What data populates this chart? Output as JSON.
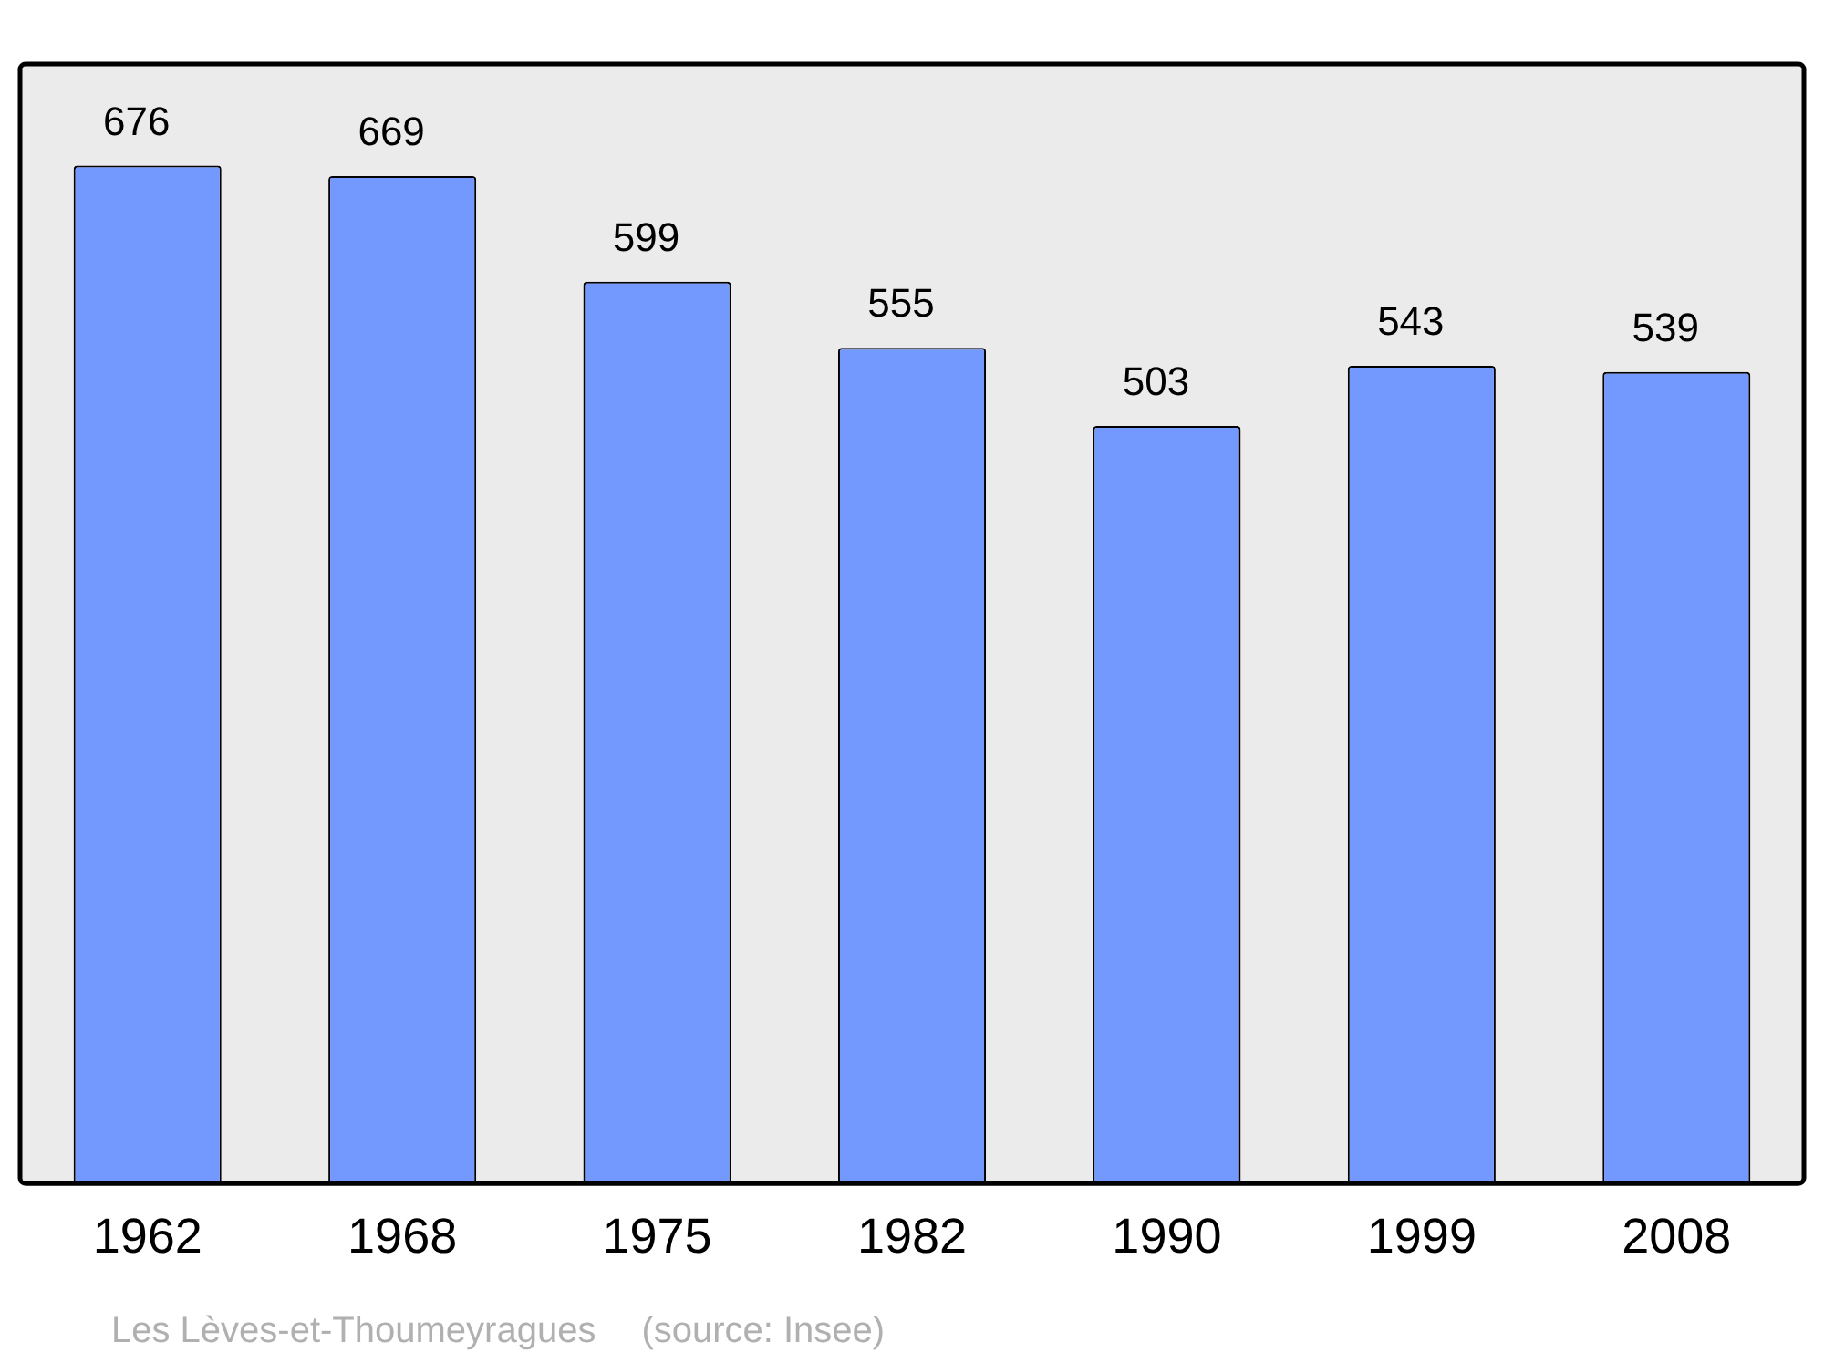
{
  "chart_data": {
    "type": "bar",
    "categories": [
      "1962",
      "1968",
      "1975",
      "1982",
      "1990",
      "1999",
      "2008"
    ],
    "values": [
      676,
      669,
      599,
      555,
      503,
      543,
      539
    ],
    "color": "#7399ff",
    "data_labels": true,
    "grid": false,
    "legend": false,
    "tick_labels": "x",
    "annotations": [
      "Les Lèves-et-Thoumeyragues",
      "(source: Insee)"
    ]
  }
}
